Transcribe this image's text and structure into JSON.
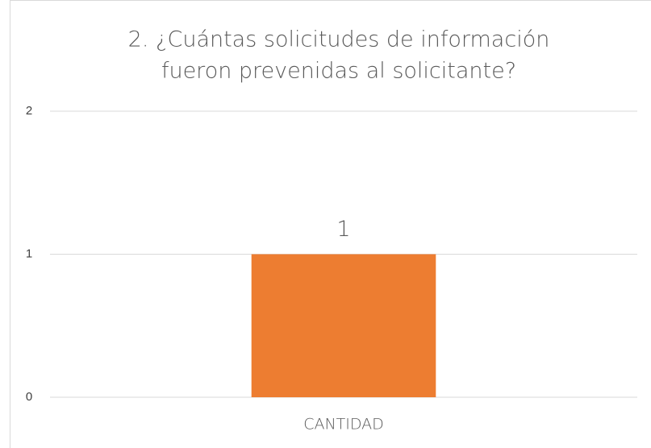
{
  "chart_data": {
    "type": "bar",
    "title": [
      "2. ¿Cuántas solicitudes de información",
      "fueron prevenidas al solicitante?"
    ],
    "categories": [
      "CANTIDAD"
    ],
    "values": [
      1
    ],
    "color": "#ED7D31",
    "ylim": [
      0,
      2
    ],
    "yticks": [
      0,
      1,
      2
    ],
    "grid": true
  }
}
